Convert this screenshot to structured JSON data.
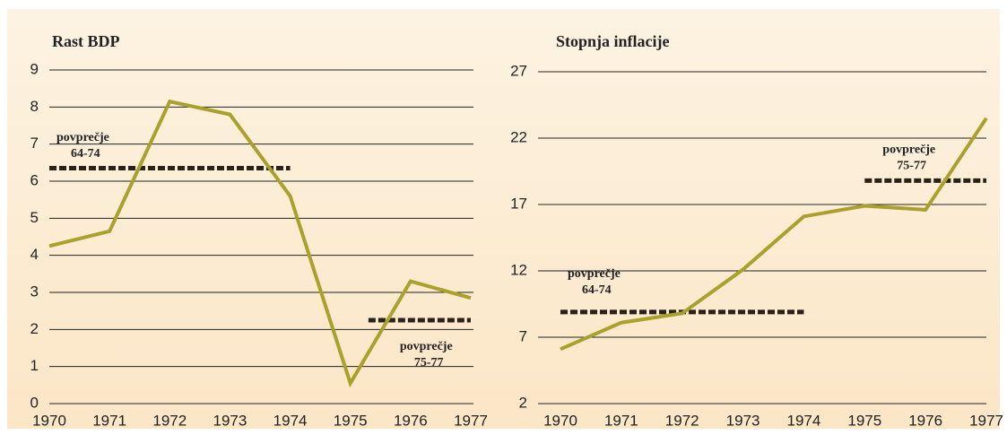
{
  "chart_data": [
    {
      "type": "line",
      "title": "Rast BDP",
      "x": [
        1970,
        1971,
        1972,
        1973,
        1974,
        1975,
        1976,
        1977
      ],
      "xlim": [
        1970,
        1977
      ],
      "xticks": [
        1970,
        1971,
        1972,
        1973,
        1974,
        1975,
        1976,
        1977
      ],
      "ylim": [
        0,
        9
      ],
      "yticks": [
        0,
        1,
        2,
        3,
        4,
        5,
        6,
        7,
        8,
        9
      ],
      "grid": true,
      "series": [
        {
          "color": "#a9a12c",
          "values": [
            4.25,
            4.65,
            8.15,
            7.8,
            5.6,
            0.55,
            3.3,
            2.85
          ]
        }
      ],
      "averages": [
        {
          "label": "povprečje",
          "period": "64-74",
          "value": 6.35,
          "from": 1970,
          "to": 1974
        },
        {
          "label": "povprečje",
          "period": "75-77",
          "value": 2.25,
          "from": 1975.3,
          "to": 1977
        }
      ]
    },
    {
      "type": "line",
      "title": "Stopnja inflacije",
      "x": [
        1970,
        1971,
        1972,
        1973,
        1974,
        1975,
        1976,
        1977
      ],
      "xlim": [
        1970,
        1977
      ],
      "xticks": [
        1970,
        1971,
        1972,
        1973,
        1974,
        1975,
        1976,
        1977
      ],
      "ylim": [
        2,
        27
      ],
      "yticks": [
        2,
        7,
        12,
        17,
        22,
        27
      ],
      "grid": true,
      "series": [
        {
          "color": "#a9a12c",
          "values": [
            6.1,
            8.1,
            8.8,
            12.1,
            16.1,
            16.9,
            16.6,
            23.5
          ]
        }
      ],
      "averages": [
        {
          "label": "povprečje",
          "period": "64-74",
          "value": 8.9,
          "from": 1970,
          "to": 1974
        },
        {
          "label": "povprečje",
          "period": "75-77",
          "value": 18.8,
          "from": 1975,
          "to": 1977
        }
      ]
    }
  ]
}
